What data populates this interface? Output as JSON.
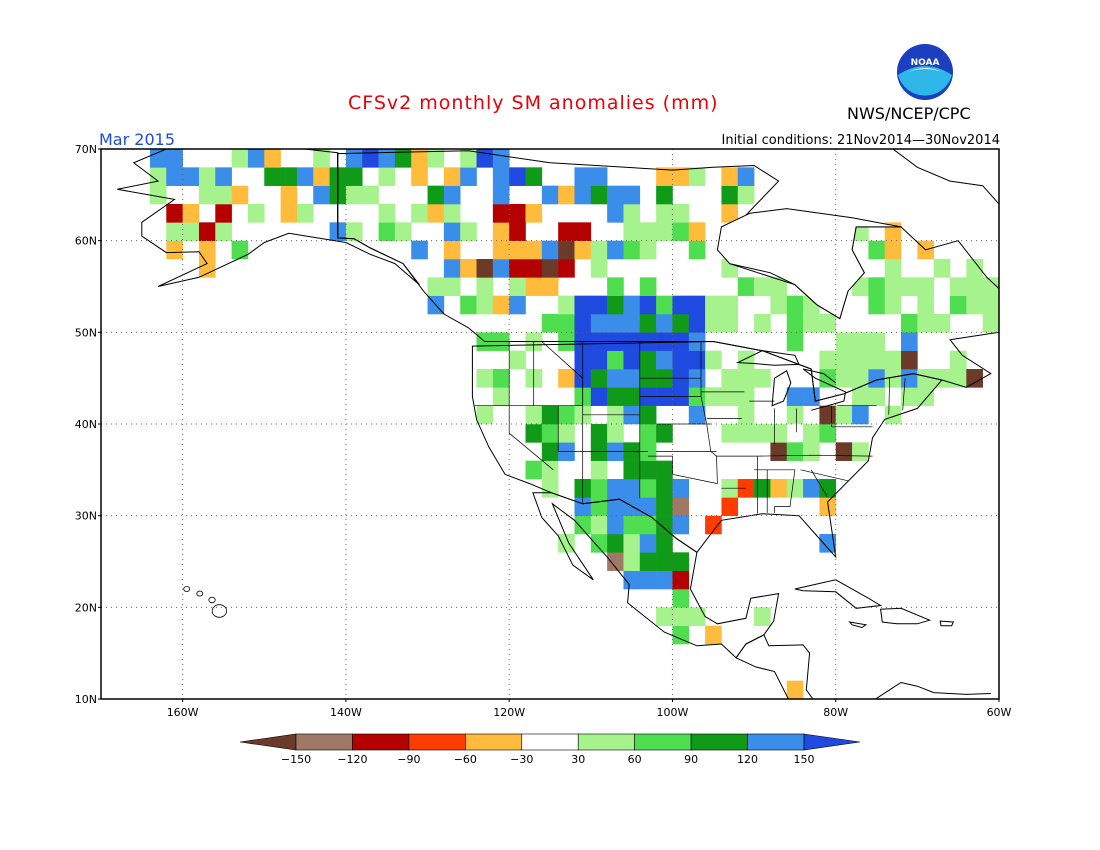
{
  "title": "CFSv2 monthly SM anomalies (mm)",
  "valid_month": "Mar 2015",
  "initial_conditions": "Initial conditions: 21Nov2014—30Nov2014",
  "agency": "NWS/NCEP/CPC",
  "logo_text": "NOAA",
  "map": {
    "lat_range": [
      10,
      70
    ],
    "lon_range": [
      -170,
      -60
    ],
    "lat_ticks": [
      "10N",
      "20N",
      "30N",
      "40N",
      "50N",
      "60N",
      "70N"
    ],
    "lon_ticks": [
      "160W",
      "140W",
      "120W",
      "100W",
      "80W",
      "60W"
    ]
  },
  "colorbar": {
    "labels": [
      "−150",
      "−120",
      "−90",
      "−60",
      "−30",
      "30",
      "60",
      "90",
      "120",
      "150"
    ],
    "colors": [
      "#6b3a28",
      "#a07866",
      "#b40000",
      "#ff3c00",
      "#ffbb3c",
      "#ffffff",
      "#a6f28c",
      "#4fde4f",
      "#0f9b17",
      "#3a8de8",
      "#1f4ae0"
    ]
  }
}
